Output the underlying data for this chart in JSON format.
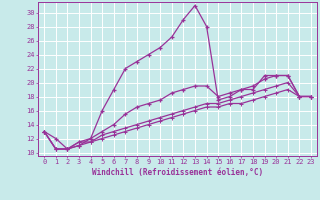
{
  "title": "",
  "xlabel": "Windchill (Refroidissement éolien,°C)",
  "ylabel": "",
  "background_color": "#c8eaea",
  "grid_color": "#ffffff",
  "line_color": "#993399",
  "xlim": [
    -0.5,
    23.5
  ],
  "ylim": [
    9.5,
    31.5
  ],
  "xticks": [
    0,
    1,
    2,
    3,
    4,
    5,
    6,
    7,
    8,
    9,
    10,
    11,
    12,
    13,
    14,
    15,
    16,
    17,
    18,
    19,
    20,
    21,
    22,
    23
  ],
  "yticks": [
    10,
    12,
    14,
    16,
    18,
    20,
    22,
    24,
    26,
    28,
    30
  ],
  "line1_x": [
    0,
    1,
    2,
    3,
    4,
    5,
    6,
    7,
    8,
    9,
    10,
    11,
    12,
    13,
    14,
    15,
    16,
    17,
    18,
    19,
    20,
    21,
    22,
    23
  ],
  "line1_y": [
    13,
    12,
    10.5,
    11,
    12,
    16,
    19,
    22,
    23,
    24,
    25,
    26.5,
    29,
    31,
    28,
    17.5,
    18,
    19,
    19,
    21,
    21,
    21,
    18,
    18
  ],
  "line2_x": [
    0,
    1,
    2,
    3,
    4,
    5,
    6,
    7,
    8,
    9,
    10,
    11,
    12,
    13,
    14,
    15,
    16,
    17,
    18,
    19,
    20,
    21,
    22,
    23
  ],
  "line2_y": [
    13,
    10.5,
    10.5,
    11.5,
    12,
    13,
    14,
    15.5,
    16.5,
    17,
    17.5,
    18.5,
    19,
    19.5,
    19.5,
    18,
    18.5,
    19,
    19.5,
    20.5,
    21,
    21,
    18,
    18
  ],
  "line3_x": [
    0,
    1,
    2,
    3,
    4,
    5,
    6,
    7,
    8,
    9,
    10,
    11,
    12,
    13,
    14,
    15,
    16,
    17,
    18,
    19,
    20,
    21,
    22,
    23
  ],
  "line3_y": [
    13,
    10.5,
    10.5,
    11.5,
    11.5,
    12.5,
    13,
    13.5,
    14,
    14.5,
    15,
    15.5,
    16,
    16.5,
    17,
    17,
    17.5,
    18,
    18.5,
    19,
    19.5,
    20,
    18,
    18
  ],
  "line4_x": [
    0,
    1,
    2,
    3,
    4,
    5,
    6,
    7,
    8,
    9,
    10,
    11,
    12,
    13,
    14,
    15,
    16,
    17,
    18,
    19,
    20,
    21,
    22,
    23
  ],
  "line4_y": [
    13,
    10.5,
    10.5,
    11,
    11.5,
    12,
    12.5,
    13,
    13.5,
    14,
    14.5,
    15,
    15.5,
    16,
    16.5,
    16.5,
    17,
    17,
    17.5,
    18,
    18.5,
    19,
    18,
    18
  ],
  "tick_fontsize": 5.0,
  "xlabel_fontsize": 5.5,
  "marker_size": 3.5,
  "linewidth": 0.9
}
